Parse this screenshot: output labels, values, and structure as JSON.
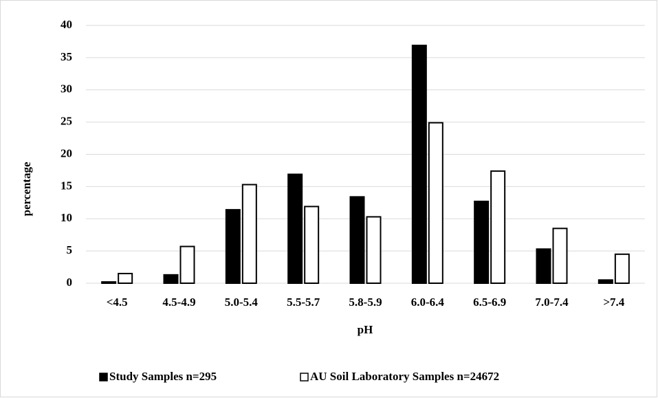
{
  "chart_data": {
    "type": "bar",
    "x_label": "pH",
    "y_label": "percentage",
    "categories": [
      "<4.5",
      "4.5-4.9",
      "5.0-5.4",
      "5.5-5.7",
      "5.8-5.9",
      "6.0-6.4",
      "6.5-6.9",
      "7.0-7.4",
      ">7.4"
    ],
    "series": [
      {
        "name": "Study Samples n=295",
        "color": "#000000",
        "values": [
          0.2,
          1.3,
          11.4,
          16.9,
          13.4,
          36.9,
          12.7,
          5.3,
          0.5
        ]
      },
      {
        "name": "AU Soil Laboratory Samples n=24672",
        "color": "#ffffff",
        "values": [
          1.5,
          5.7,
          15.3,
          11.9,
          10.3,
          24.9,
          17.4,
          8.5,
          4.5
        ]
      }
    ],
    "ylim": [
      0,
      40
    ],
    "yticks": [
      0,
      5,
      10,
      15,
      20,
      25,
      30,
      35,
      40
    ],
    "grid": true,
    "legend": "bottom"
  }
}
